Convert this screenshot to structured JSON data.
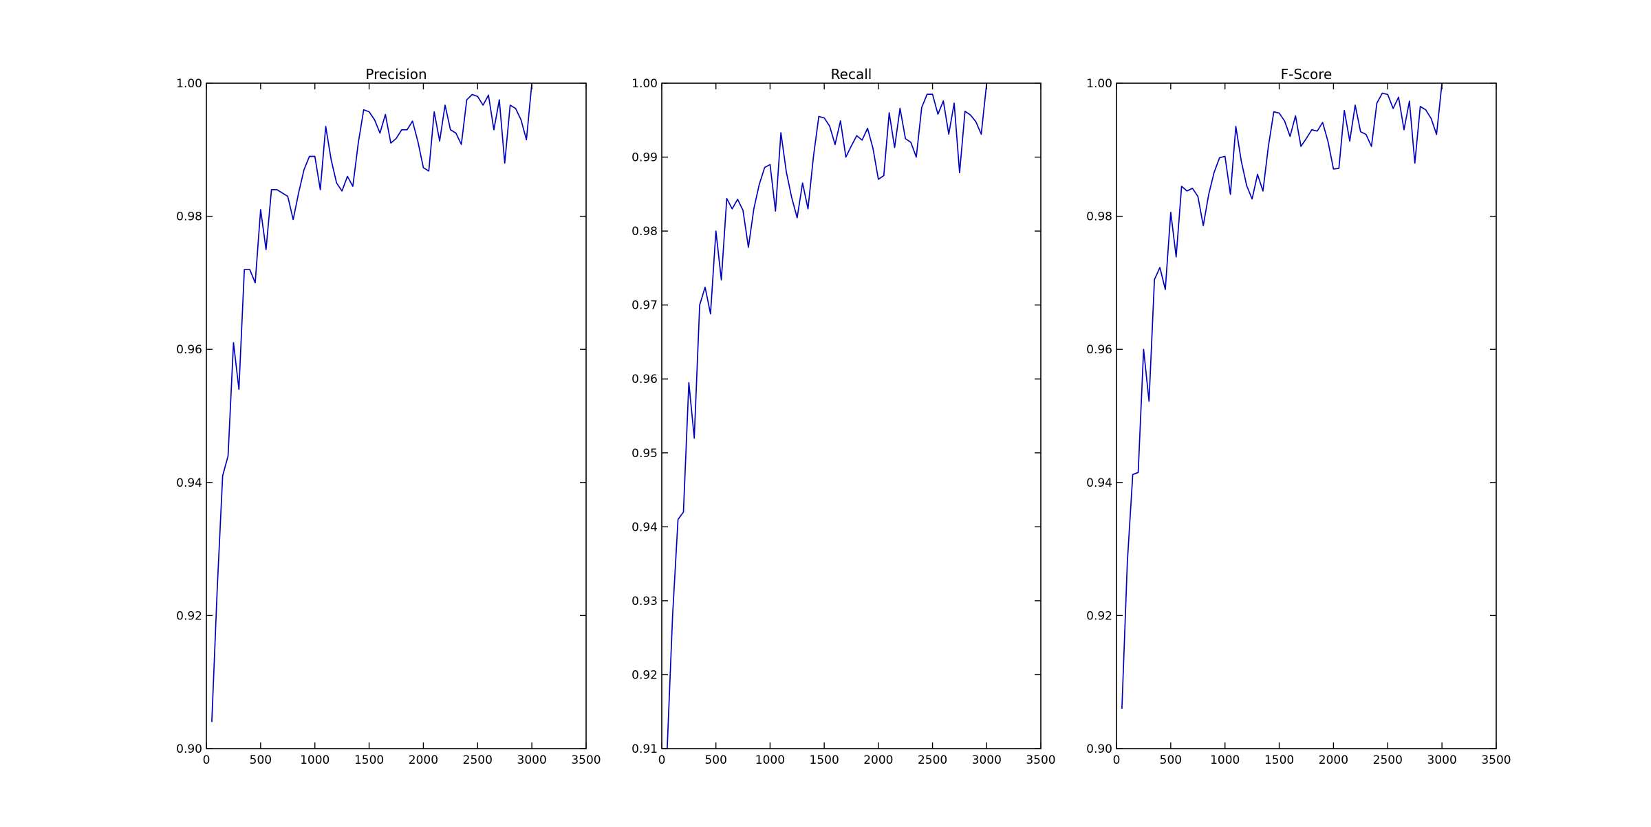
{
  "chart_data": [
    {
      "type": "line",
      "title": "Precision",
      "xlim": [
        0,
        3500
      ],
      "ylim": [
        0.9,
        1.0
      ],
      "xticks": [
        "0",
        "500",
        "1000",
        "1500",
        "2000",
        "2500",
        "3000",
        "3500"
      ],
      "yticks": [
        "0.90",
        "0.92",
        "0.94",
        "0.96",
        "0.98",
        "1.00"
      ],
      "series": [
        {
          "color": "#0000bf",
          "x": [
            50,
            100,
            150,
            200,
            250,
            300,
            350,
            400,
            450,
            500,
            550,
            600,
            650,
            700,
            750,
            800,
            850,
            900,
            950,
            1000,
            1050,
            1100,
            1150,
            1200,
            1250,
            1300,
            1350,
            1400,
            1450,
            1500,
            1550,
            1600,
            1650,
            1700,
            1750,
            1800,
            1850,
            1900,
            1950,
            2000,
            2050,
            2100,
            2150,
            2200,
            2250,
            2300,
            2350,
            2400,
            2450,
            2500,
            2550,
            2600,
            2650,
            2700,
            2750,
            2800,
            2850,
            2900,
            2950,
            3000
          ],
          "y": [
            0.904,
            0.924,
            0.941,
            0.944,
            0.961,
            0.954,
            0.972,
            0.972,
            0.97,
            0.981,
            0.975,
            0.984,
            0.984,
            0.9835,
            0.983,
            0.9795,
            0.9835,
            0.987,
            0.989,
            0.989,
            0.984,
            0.9935,
            0.9885,
            0.985,
            0.9838,
            0.986,
            0.9845,
            0.991,
            0.996,
            0.9957,
            0.9945,
            0.9925,
            0.9953,
            0.991,
            0.9917,
            0.993,
            0.993,
            0.9943,
            0.9912,
            0.9873,
            0.9868,
            0.9957,
            0.9913,
            0.9967,
            0.993,
            0.9925,
            0.9908,
            0.9975,
            0.9983,
            0.998,
            0.9967,
            0.9982,
            0.993,
            0.9975,
            0.988,
            0.9967,
            0.9962,
            0.9945,
            0.9915,
            1.0
          ]
        }
      ]
    },
    {
      "type": "line",
      "title": "Recall",
      "xlim": [
        0,
        3500
      ],
      "ylim": [
        0.91,
        1.0
      ],
      "xticks": [
        "0",
        "500",
        "1000",
        "1500",
        "2000",
        "2500",
        "3000",
        "3500"
      ],
      "yticks": [
        "0.91",
        "0.92",
        "0.93",
        "0.94",
        "0.95",
        "0.96",
        "0.97",
        "0.98",
        "0.99",
        "1.00"
      ],
      "series": [
        {
          "color": "#0000bf",
          "x": [
            50,
            100,
            150,
            200,
            250,
            300,
            350,
            400,
            450,
            500,
            550,
            600,
            650,
            700,
            750,
            800,
            850,
            900,
            950,
            1000,
            1050,
            1100,
            1150,
            1200,
            1250,
            1300,
            1350,
            1400,
            1450,
            1500,
            1550,
            1600,
            1650,
            1700,
            1750,
            1800,
            1850,
            1900,
            1950,
            2000,
            2050,
            2100,
            2150,
            2200,
            2250,
            2300,
            2350,
            2400,
            2450,
            2500,
            2550,
            2600,
            2650,
            2700,
            2750,
            2800,
            2850,
            2900,
            2950,
            3000
          ],
          "y": [
            0.91,
            0.928,
            0.941,
            0.942,
            0.9595,
            0.952,
            0.97,
            0.9724,
            0.9688,
            0.98,
            0.9734,
            0.9844,
            0.983,
            0.9843,
            0.9828,
            0.9778,
            0.983,
            0.9863,
            0.9886,
            0.989,
            0.9827,
            0.9933,
            0.988,
            0.9845,
            0.9818,
            0.9865,
            0.983,
            0.99,
            0.9955,
            0.9953,
            0.9942,
            0.9917,
            0.9949,
            0.99,
            0.9915,
            0.9929,
            0.9923,
            0.9939,
            0.9912,
            0.987,
            0.9875,
            0.996,
            0.9913,
            0.9966,
            0.9925,
            0.992,
            0.99,
            0.9967,
            0.9985,
            0.9985,
            0.9958,
            0.9976,
            0.9931,
            0.9973,
            0.9879,
            0.9962,
            0.9957,
            0.9948,
            0.9931,
            1.0
          ]
        }
      ]
    },
    {
      "type": "line",
      "title": "F-Score",
      "xlim": [
        0,
        3500
      ],
      "ylim": [
        0.9,
        1.0
      ],
      "xticks": [
        "0",
        "500",
        "1000",
        "1500",
        "2000",
        "2500",
        "3000",
        "3500"
      ],
      "yticks": [
        "0.90",
        "0.92",
        "0.94",
        "0.96",
        "0.98",
        "1.00"
      ],
      "series": [
        {
          "color": "#0000bf",
          "x": [
            50,
            100,
            150,
            200,
            250,
            300,
            350,
            400,
            450,
            500,
            550,
            600,
            650,
            700,
            750,
            800,
            850,
            900,
            950,
            1000,
            1050,
            1100,
            1150,
            1200,
            1250,
            1300,
            1350,
            1400,
            1450,
            1500,
            1550,
            1600,
            1650,
            1700,
            1750,
            1800,
            1850,
            1900,
            1950,
            2000,
            2050,
            2100,
            2150,
            2200,
            2250,
            2300,
            2350,
            2400,
            2450,
            2500,
            2550,
            2600,
            2650,
            2700,
            2750,
            2800,
            2850,
            2900,
            2950,
            3000
          ],
          "y": [
            0.906,
            0.928,
            0.9412,
            0.9415,
            0.96,
            0.9522,
            0.9705,
            0.9723,
            0.969,
            0.9806,
            0.9739,
            0.9845,
            0.9838,
            0.9842,
            0.983,
            0.9786,
            0.9833,
            0.9866,
            0.9888,
            0.989,
            0.9833,
            0.9935,
            0.9883,
            0.9846,
            0.9826,
            0.9863,
            0.9838,
            0.9905,
            0.9957,
            0.9955,
            0.9943,
            0.992,
            0.9951,
            0.9905,
            0.9917,
            0.993,
            0.9928,
            0.9941,
            0.9912,
            0.9871,
            0.9872,
            0.9959,
            0.9913,
            0.9967,
            0.9927,
            0.9923,
            0.9905,
            0.997,
            0.9985,
            0.9983,
            0.9962,
            0.9979,
            0.993,
            0.9973,
            0.988,
            0.9965,
            0.996,
            0.9947,
            0.9923,
            1.0
          ]
        }
      ]
    }
  ]
}
